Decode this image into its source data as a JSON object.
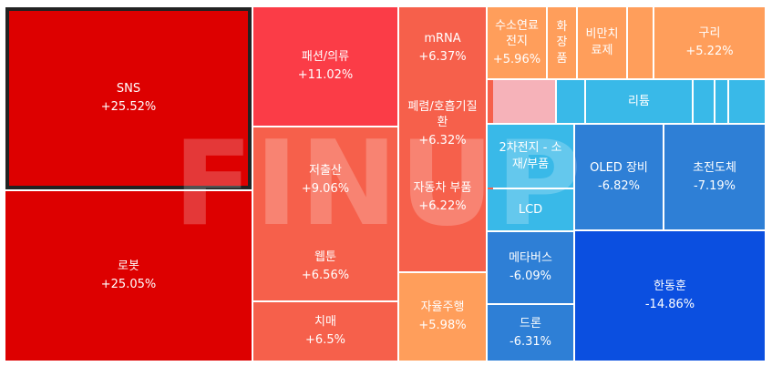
{
  "chart_data": {
    "type": "treemap",
    "unit": "%",
    "watermark": "FINUP",
    "items": [
      {
        "name": "SNS",
        "value": "+25.52%",
        "change": 25.52,
        "color": "#dd0000",
        "selected": true
      },
      {
        "name": "로봇",
        "value": "+25.05%",
        "change": 25.05,
        "color": "#dd0000"
      },
      {
        "name": "패션/의류",
        "value": "+11.02%",
        "change": 11.02,
        "color": "#fb3c47"
      },
      {
        "name": "저출산",
        "value": "+9.06%",
        "change": 9.06,
        "color": "#f6604b"
      },
      {
        "name": "웹툰",
        "value": "+6.56%",
        "change": 6.56,
        "color": "#f6604b"
      },
      {
        "name": "치매",
        "value": "+6.5%",
        "change": 6.5,
        "color": "#f6604b"
      },
      {
        "name": "mRNA",
        "value": "+6.37%",
        "change": 6.37,
        "color": "#f6604b"
      },
      {
        "name": "폐렴/호흡기질환",
        "value": "+6.32%",
        "change": 6.32,
        "color": "#f6604b"
      },
      {
        "name": "자동차 부품",
        "value": "+6.22%",
        "change": 6.22,
        "color": "#f6604b"
      },
      {
        "name": "자율주행",
        "value": "+5.98%",
        "change": 5.98,
        "color": "#ff9e5b"
      },
      {
        "name": "수소연료전지",
        "value": "+5.96%",
        "change": 5.96,
        "color": "#ff9e5b"
      },
      {
        "name": "화장품",
        "value": "",
        "change": null,
        "color": "#ff9e5b"
      },
      {
        "name": "비만치료제",
        "value": "",
        "change": null,
        "color": "#ff9e5b"
      },
      {
        "name": "",
        "value": "",
        "change": null,
        "color": "#ff9e5b"
      },
      {
        "name": "구리",
        "value": "+5.22%",
        "change": 5.22,
        "color": "#ff9e5b"
      },
      {
        "name": "",
        "value": "",
        "change": null,
        "color": "#f6604b"
      },
      {
        "name": "",
        "value": "",
        "change": null,
        "color": "#f6604b"
      },
      {
        "name": "",
        "value": "",
        "change": null,
        "color": "#f6604b"
      },
      {
        "name": "",
        "value": "",
        "change": null,
        "color": "#f6604b"
      },
      {
        "name": "",
        "value": "",
        "change": null,
        "color": "#f6b2b9"
      },
      {
        "name": "",
        "value": "",
        "change": null,
        "color": "#39b9e8"
      },
      {
        "name": "리튬",
        "value": "",
        "change": null,
        "color": "#39b9e8"
      },
      {
        "name": "",
        "value": "",
        "change": null,
        "color": "#39b9e8"
      },
      {
        "name": "",
        "value": "",
        "change": null,
        "color": "#39b9e8"
      },
      {
        "name": "",
        "value": "",
        "change": null,
        "color": "#39b9e8"
      },
      {
        "name": "2차전지 - 소재/부품",
        "value": "",
        "change": null,
        "color": "#39b9e8"
      },
      {
        "name": "LCD",
        "value": "",
        "change": null,
        "color": "#39b9e8"
      },
      {
        "name": "OLED 장비",
        "value": "-6.82%",
        "change": -6.82,
        "color": "#2e7fd6"
      },
      {
        "name": "초전도체",
        "value": "-7.19%",
        "change": -7.19,
        "color": "#2e7fd6"
      },
      {
        "name": "메타버스",
        "value": "-6.09%",
        "change": -6.09,
        "color": "#2e7fd6"
      },
      {
        "name": "드론",
        "value": "-6.31%",
        "change": -6.31,
        "color": "#2e7fd6"
      },
      {
        "name": "한동훈",
        "value": "-14.86%",
        "change": -14.86,
        "color": "#0b4fe0"
      }
    ]
  }
}
